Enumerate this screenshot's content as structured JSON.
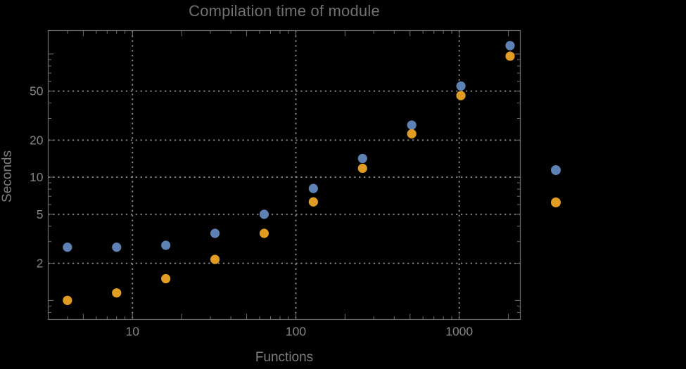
{
  "colors": {
    "background": "#000000",
    "frame": "#6f6f6f",
    "grid": "#8f8f8f",
    "tick": "#6f6f6f",
    "text": "#848484",
    "title_text": "#717171",
    "series": [
      "#5E81B5",
      "#E19C24"
    ]
  },
  "chart_data": {
    "type": "scatter",
    "title": "Compilation time of module",
    "xlabel": "Functions",
    "ylabel": "Seconds",
    "x_scale": "log",
    "y_scale": "log",
    "x_range": [
      3.05,
      2365
    ],
    "y_range": [
      0.7,
      155
    ],
    "x": [
      4,
      8,
      16,
      32,
      64,
      128,
      256,
      512,
      1024,
      2048
    ],
    "series": [
      {
        "name": "",
        "color": "#5E81B5",
        "values": [
          2.7,
          2.7,
          2.8,
          3.5,
          5.0,
          8.1,
          14.2,
          26.5,
          55,
          117
        ]
      },
      {
        "name": "",
        "color": "#E19C24",
        "values": [
          1.0,
          1.15,
          1.5,
          2.15,
          3.5,
          6.3,
          11.8,
          22.5,
          46,
          96
        ]
      }
    ],
    "x_ticks_labeled": [
      10,
      100,
      1000
    ],
    "y_ticks_labeled": [
      2,
      5,
      10,
      20,
      50
    ],
    "grid": "dotted lines at labeled ticks, framed plot, log minor ticks on all four sides",
    "legend": {
      "position": "right-outside",
      "labels_visible": false,
      "marker_colors": [
        "#5E81B5",
        "#E19C24"
      ]
    }
  }
}
